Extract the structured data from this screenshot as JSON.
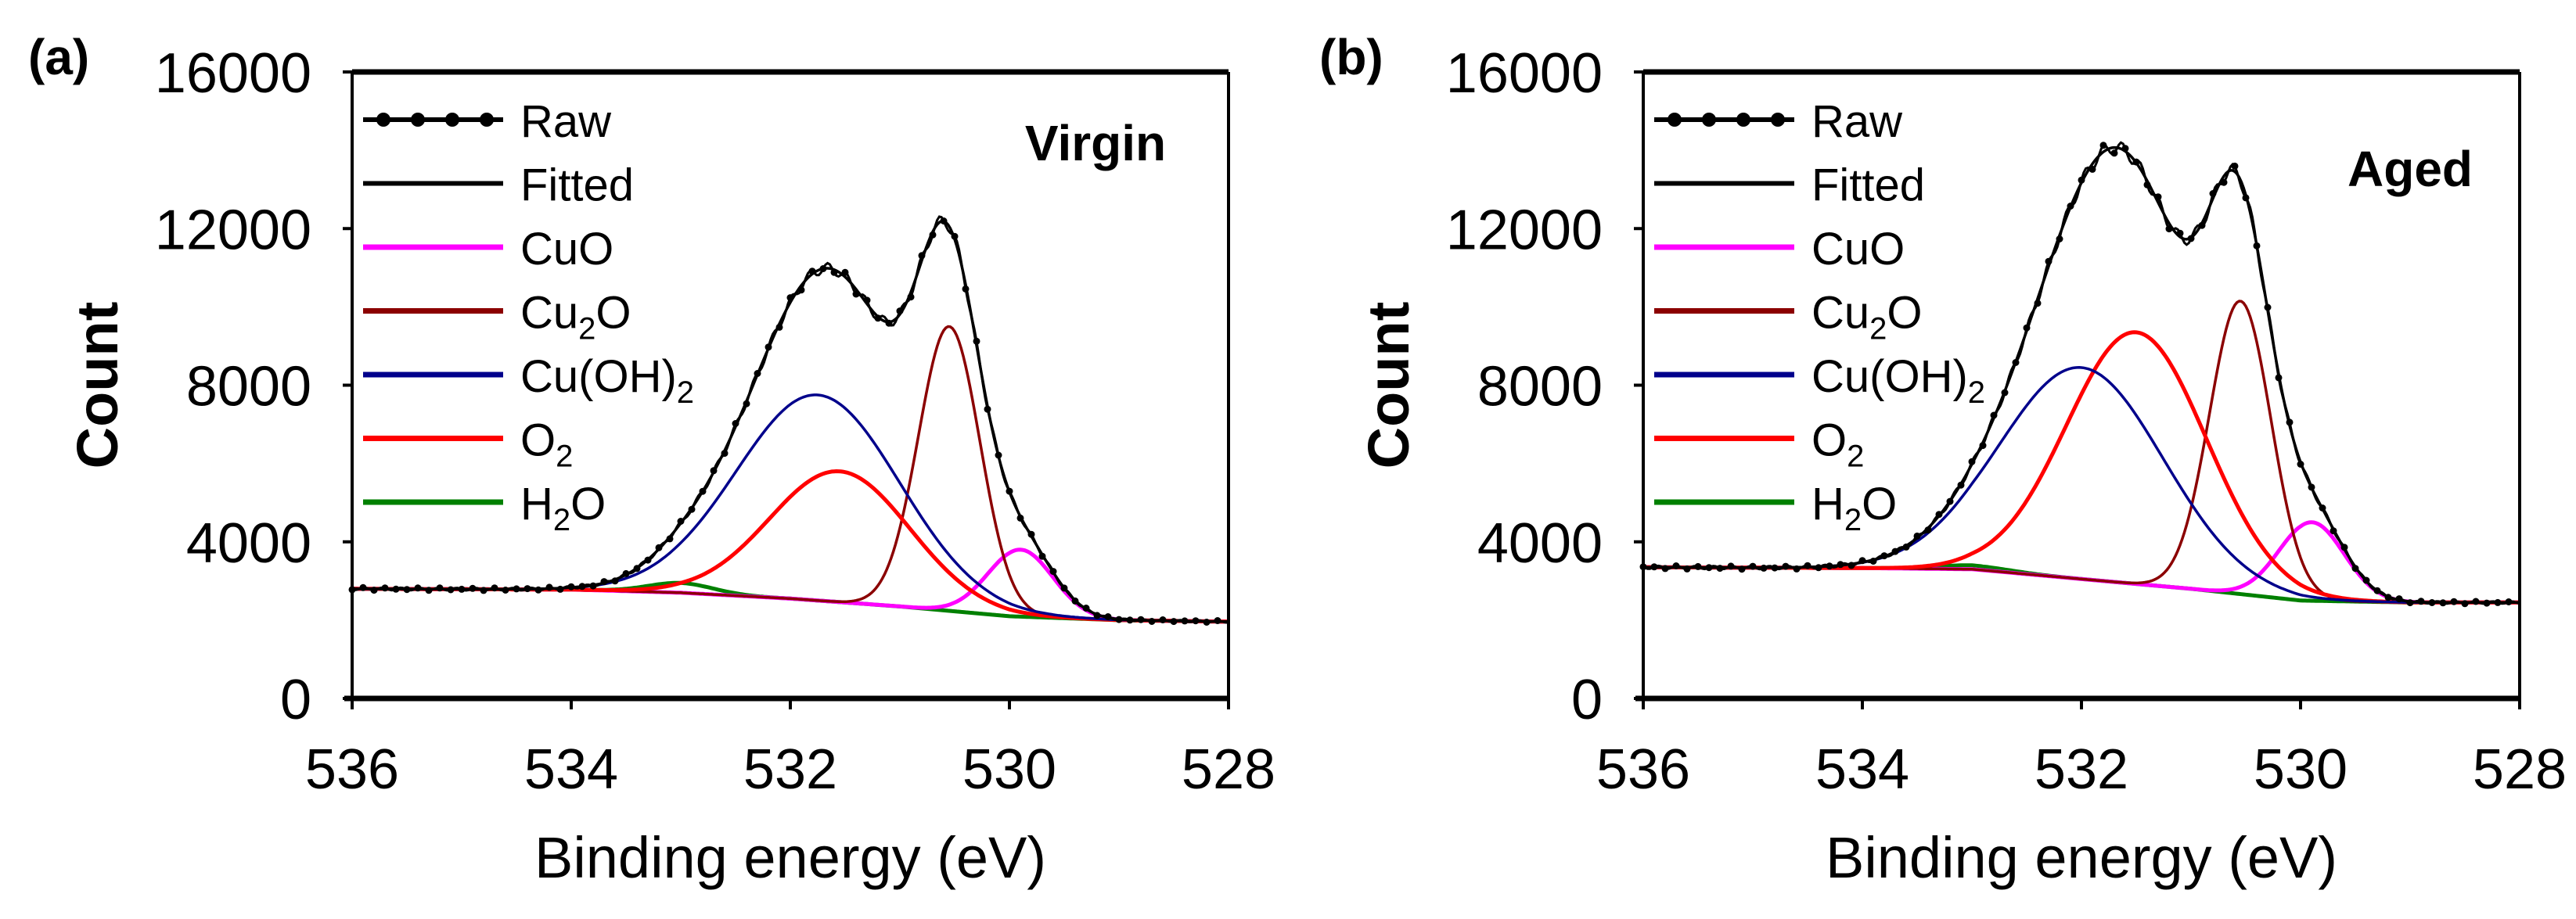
{
  "chart_data": [
    {
      "type": "line",
      "panel_label": "(a)",
      "annotation": "Virgin",
      "xlabel": "Binding energy (eV)",
      "ylabel": "Count",
      "xlim": [
        536,
        528
      ],
      "ylim": [
        0,
        16000
      ],
      "x_reversed": true,
      "xticks": [
        "536",
        "534",
        "532",
        "530",
        "528"
      ],
      "yticks": [
        "0",
        "4000",
        "8000",
        "12000",
        "16000"
      ],
      "grid": false,
      "legend_position": "top-left",
      "background": {
        "x": [
          536,
          534,
          533,
          532,
          531,
          530,
          529,
          528
        ],
        "y": [
          2800,
          2780,
          2700,
          2550,
          2350,
          2100,
          2000,
          1960
        ]
      },
      "series": [
        {
          "name": "Raw",
          "color": "#000000",
          "style": "line-with-dots",
          "sum_of_components": true
        },
        {
          "name": "Fitted",
          "color": "#000000",
          "style": "line",
          "sum_of_components": true
        },
        {
          "name": "CuO",
          "sub": "",
          "color": "#ff00ff",
          "peak_center": 529.9,
          "peak_height": 3800,
          "fwhm": 0.7
        },
        {
          "name": "Cu2O",
          "color": "#8b0000",
          "peak_center": 530.55,
          "peak_height": 9500,
          "fwhm": 0.66
        },
        {
          "name": "Cu(OH)2",
          "color": "#00008b",
          "peak_center": 531.75,
          "peak_height": 7750,
          "fwhm": 1.75
        },
        {
          "name": "O2",
          "color": "#ff0000",
          "peak_center": 531.55,
          "peak_height": 5800,
          "fwhm": 1.5
        },
        {
          "name": "H2O",
          "color": "#008000",
          "peak_center": 533.0,
          "peak_height": 2950,
          "fwhm": 0.7
        }
      ]
    },
    {
      "type": "line",
      "panel_label": "(b)",
      "annotation": "Aged",
      "xlabel": "Binding energy (eV)",
      "ylabel": "Count",
      "xlim": [
        536,
        528
      ],
      "ylim": [
        0,
        16000
      ],
      "x_reversed": true,
      "xticks": [
        "536",
        "534",
        "532",
        "530",
        "528"
      ],
      "yticks": [
        "0",
        "4000",
        "8000",
        "12000",
        "16000"
      ],
      "grid": false,
      "legend_position": "top-left",
      "background": {
        "x": [
          536,
          534,
          533,
          532,
          531,
          530,
          529,
          528
        ],
        "y": [
          3350,
          3330,
          3300,
          3050,
          2800,
          2500,
          2450,
          2450
        ]
      },
      "series": [
        {
          "name": "Raw",
          "color": "#000000",
          "style": "line-with-dots",
          "sum_of_components": true
        },
        {
          "name": "Fitted",
          "color": "#000000",
          "style": "line",
          "sum_of_components": true
        },
        {
          "name": "CuO",
          "color": "#ff00ff",
          "peak_center": 529.9,
          "peak_height": 4500,
          "fwhm": 0.7
        },
        {
          "name": "Cu2O",
          "color": "#8b0000",
          "peak_center": 530.55,
          "peak_height": 10150,
          "fwhm": 0.66
        },
        {
          "name": "Cu(OH)2",
          "color": "#00008b",
          "peak_center": 532.0,
          "peak_height": 8450,
          "fwhm": 1.75
        },
        {
          "name": "O2",
          "color": "#ff0000",
          "peak_center": 531.5,
          "peak_height": 9350,
          "fwhm": 1.5
        },
        {
          "name": "H2O",
          "color": "#008000",
          "peak_center": 533.0,
          "peak_height": 3400,
          "fwhm": 0.8
        }
      ]
    }
  ],
  "legend_labels": [
    {
      "main": "Raw",
      "sub": "",
      "tail": ""
    },
    {
      "main": "Fitted",
      "sub": "",
      "tail": ""
    },
    {
      "main": "CuO",
      "sub": "",
      "tail": ""
    },
    {
      "main": "Cu",
      "sub": "2",
      "tail": "O"
    },
    {
      "main": "Cu(OH)",
      "sub": "2",
      "tail": ""
    },
    {
      "main": "O",
      "sub": "2",
      "tail": ""
    },
    {
      "main": "H",
      "sub": "2",
      "tail": "O"
    }
  ]
}
